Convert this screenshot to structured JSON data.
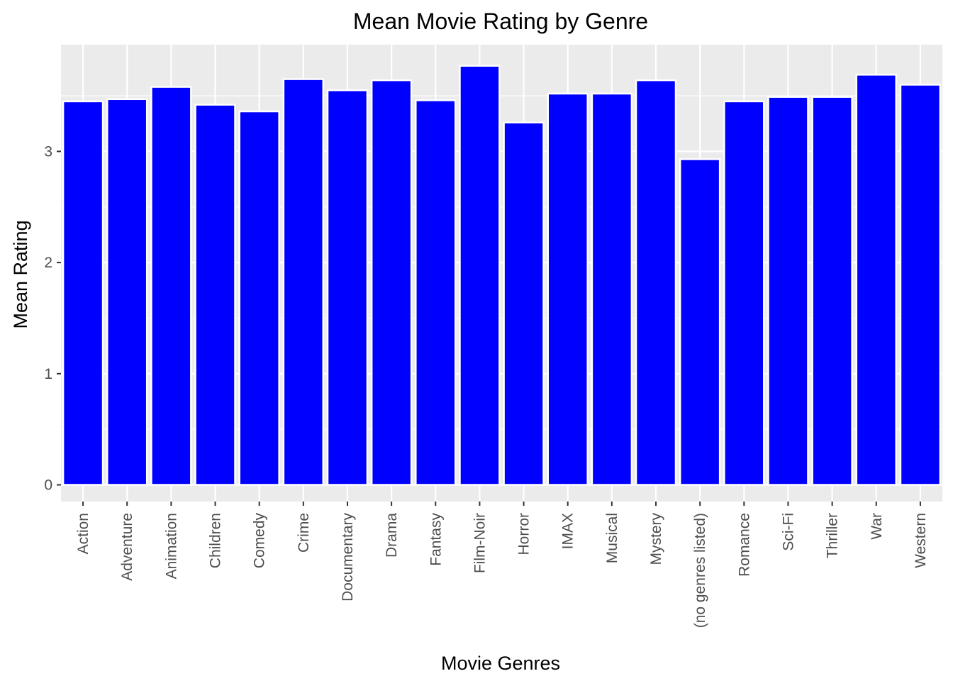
{
  "chart_data": {
    "type": "bar",
    "title": "Mean Movie Rating by Genre",
    "xlabel": "Movie Genres",
    "ylabel": "Mean Rating",
    "categories": [
      "Action",
      "Adventure",
      "Animation",
      "Children",
      "Comedy",
      "Crime",
      "Documentary",
      "Drama",
      "Fantasy",
      "Film-Noir",
      "Horror",
      "IMAX",
      "Musical",
      "Mystery",
      "(no genres listed)",
      "Romance",
      "Sci-Fi",
      "Thriller",
      "War",
      "Western"
    ],
    "values": [
      3.45,
      3.47,
      3.58,
      3.42,
      3.36,
      3.65,
      3.55,
      3.64,
      3.46,
      3.77,
      3.26,
      3.52,
      3.52,
      3.64,
      2.93,
      3.45,
      3.49,
      3.49,
      3.69,
      3.6
    ],
    "yticks": [
      0,
      1,
      2,
      3
    ],
    "ylim": [
      -0.15,
      3.96
    ],
    "grid": true,
    "colors": {
      "bar_fill": "#0000ff",
      "bar_outline": "#ffffff",
      "panel_background": "#ebebeb",
      "grid": "#ffffff"
    }
  }
}
